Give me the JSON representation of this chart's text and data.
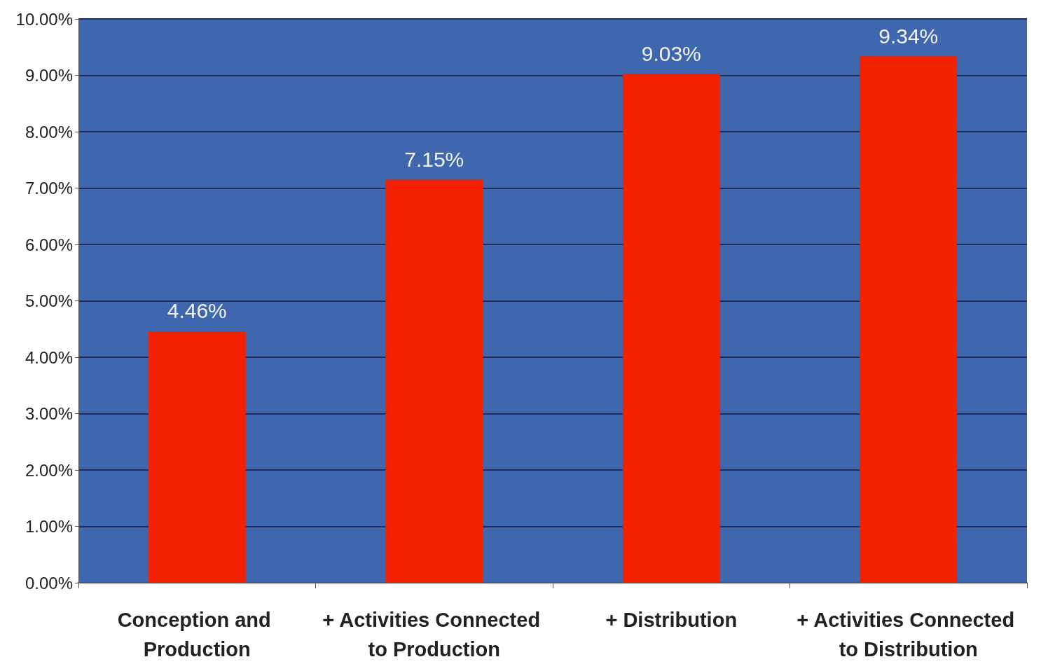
{
  "chart_data": {
    "type": "bar",
    "categories": [
      "Conception and Production",
      "+ Activities Connected to Production",
      "+ Distribution",
      "+ Activities Connected to Distribution"
    ],
    "values": [
      4.46,
      7.15,
      9.03,
      9.34
    ],
    "value_labels": [
      "4.46%",
      "7.15%",
      "9.03%",
      "9.34%"
    ],
    "color": "#f22200",
    "ylim": [
      0,
      10
    ],
    "yticks": [
      {
        "value": 0,
        "label": "0.00%"
      },
      {
        "value": 1,
        "label": "1.00%"
      },
      {
        "value": 2,
        "label": "2.00%"
      },
      {
        "value": 3,
        "label": "3.00%"
      },
      {
        "value": 4,
        "label": "4.00%"
      },
      {
        "value": 5,
        "label": "5.00%"
      },
      {
        "value": 6,
        "label": "6.00%"
      },
      {
        "value": 7,
        "label": "7.00%"
      },
      {
        "value": 8,
        "label": "8.00%"
      },
      {
        "value": 9,
        "label": "9.00%"
      },
      {
        "value": 10,
        "label": "10.00%"
      }
    ],
    "grid": true
  }
}
